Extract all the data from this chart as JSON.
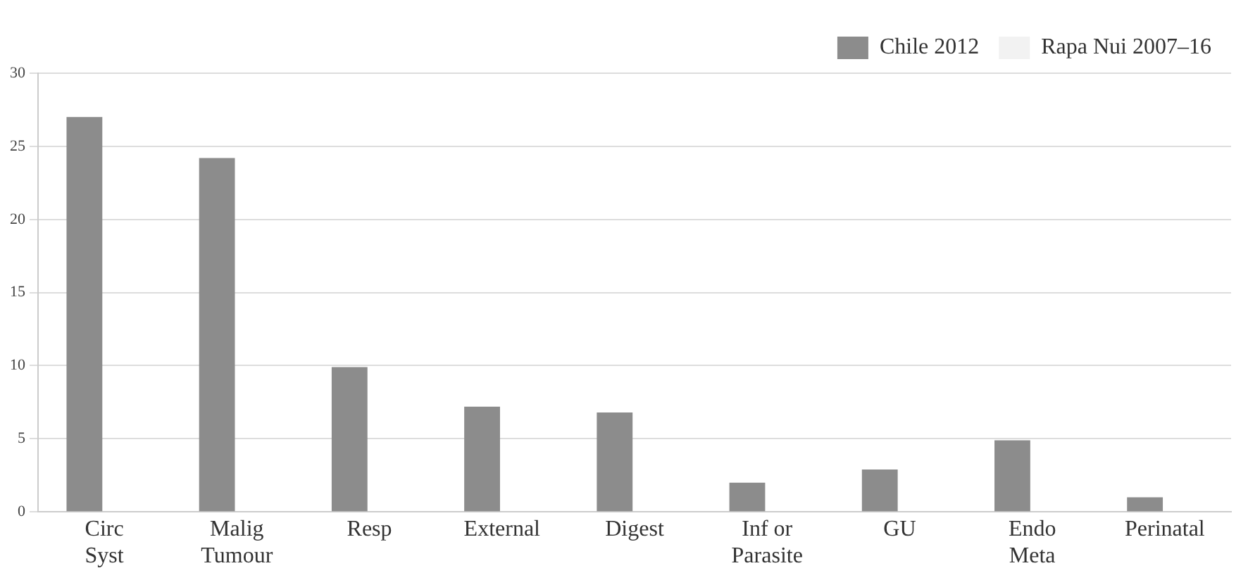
{
  "chart_data": {
    "type": "bar",
    "categories": [
      "Circ\nSyst",
      "Malig\nTumour",
      "Resp",
      "External",
      "Digest",
      "Inf or\nParasite",
      "GU",
      "Endo\nMeta",
      "Perinatal"
    ],
    "series": [
      {
        "name": "Chile 2012",
        "color": "#8c8c8c",
        "values": [
          27,
          24.2,
          9.9,
          7.2,
          6.8,
          2,
          2.9,
          4.9,
          1
        ]
      },
      {
        "name": "Rapa Nui 2007–16",
        "color": "#f2f2f2",
        "values": [
          null,
          null,
          null,
          null,
          null,
          null,
          null,
          null,
          null
        ]
      }
    ],
    "ylim": [
      0,
      30
    ],
    "yticks": [
      0,
      5,
      10,
      15,
      20,
      25,
      30
    ],
    "grid": "y",
    "legend": "top right"
  }
}
